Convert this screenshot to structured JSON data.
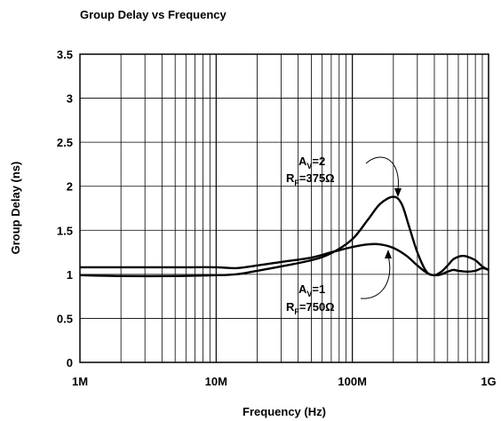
{
  "chart_data": {
    "type": "line",
    "title": "Group Delay vs Frequency",
    "xlabel": "Frequency (Hz)",
    "ylabel": "Group Delay (ns)",
    "x_scale": "log",
    "xlim": [
      1000000,
      1000000000
    ],
    "ylim": [
      0,
      3.5
    ],
    "grid": true,
    "x_ticks": [
      {
        "value": 1000000,
        "label": "1M"
      },
      {
        "value": 10000000,
        "label": "10M"
      },
      {
        "value": 100000000,
        "label": "100M"
      },
      {
        "value": 1000000000,
        "label": "1G"
      }
    ],
    "y_ticks": [
      {
        "value": 0,
        "label": "0"
      },
      {
        "value": 0.5,
        "label": "0.5"
      },
      {
        "value": 1,
        "label": "1"
      },
      {
        "value": 1.5,
        "label": "1.5"
      },
      {
        "value": 2,
        "label": "2"
      },
      {
        "value": 2.5,
        "label": "2.5"
      },
      {
        "value": 3,
        "label": "3"
      },
      {
        "value": 3.5,
        "label": "3.5"
      }
    ],
    "series": [
      {
        "name": "AV=2, RF=375Ω",
        "label_lines": [
          {
            "main": "A",
            "sub": "V",
            "rest": "=2"
          },
          {
            "main": "R",
            "sub": "F",
            "rest": "=375Ω"
          }
        ],
        "x": [
          1000000,
          2000000,
          5000000,
          10000000,
          14000000,
          20000000,
          30000000,
          50000000,
          70000000,
          100000000,
          130000000,
          160000000,
          200000000,
          230000000,
          260000000,
          300000000,
          350000000,
          400000000,
          450000000,
          500000000,
          550000000,
          600000000,
          700000000,
          800000000,
          900000000,
          1000000000
        ],
        "values": [
          0.99,
          0.98,
          0.98,
          0.99,
          1.0,
          1.04,
          1.09,
          1.16,
          1.24,
          1.4,
          1.62,
          1.8,
          1.88,
          1.8,
          1.55,
          1.25,
          1.03,
          0.99,
          1.0,
          1.03,
          1.05,
          1.04,
          1.03,
          1.04,
          1.07,
          1.05
        ]
      },
      {
        "name": "AV=1, RF=750Ω",
        "label_lines": [
          {
            "main": "A",
            "sub": "V",
            "rest": "=1"
          },
          {
            "main": "R",
            "sub": "F",
            "rest": "=750Ω"
          }
        ],
        "x": [
          1000000,
          2000000,
          5000000,
          10000000,
          14000000,
          20000000,
          30000000,
          50000000,
          70000000,
          100000000,
          130000000,
          160000000,
          200000000,
          250000000,
          300000000,
          350000000,
          400000000,
          450000000,
          500000000,
          550000000,
          600000000,
          650000000,
          700000000,
          800000000,
          900000000,
          1000000000
        ],
        "values": [
          1.08,
          1.08,
          1.08,
          1.08,
          1.07,
          1.1,
          1.14,
          1.19,
          1.25,
          1.31,
          1.34,
          1.34,
          1.3,
          1.21,
          1.1,
          1.02,
          0.99,
          1.03,
          1.1,
          1.17,
          1.2,
          1.21,
          1.2,
          1.16,
          1.09,
          1.05
        ]
      }
    ]
  }
}
